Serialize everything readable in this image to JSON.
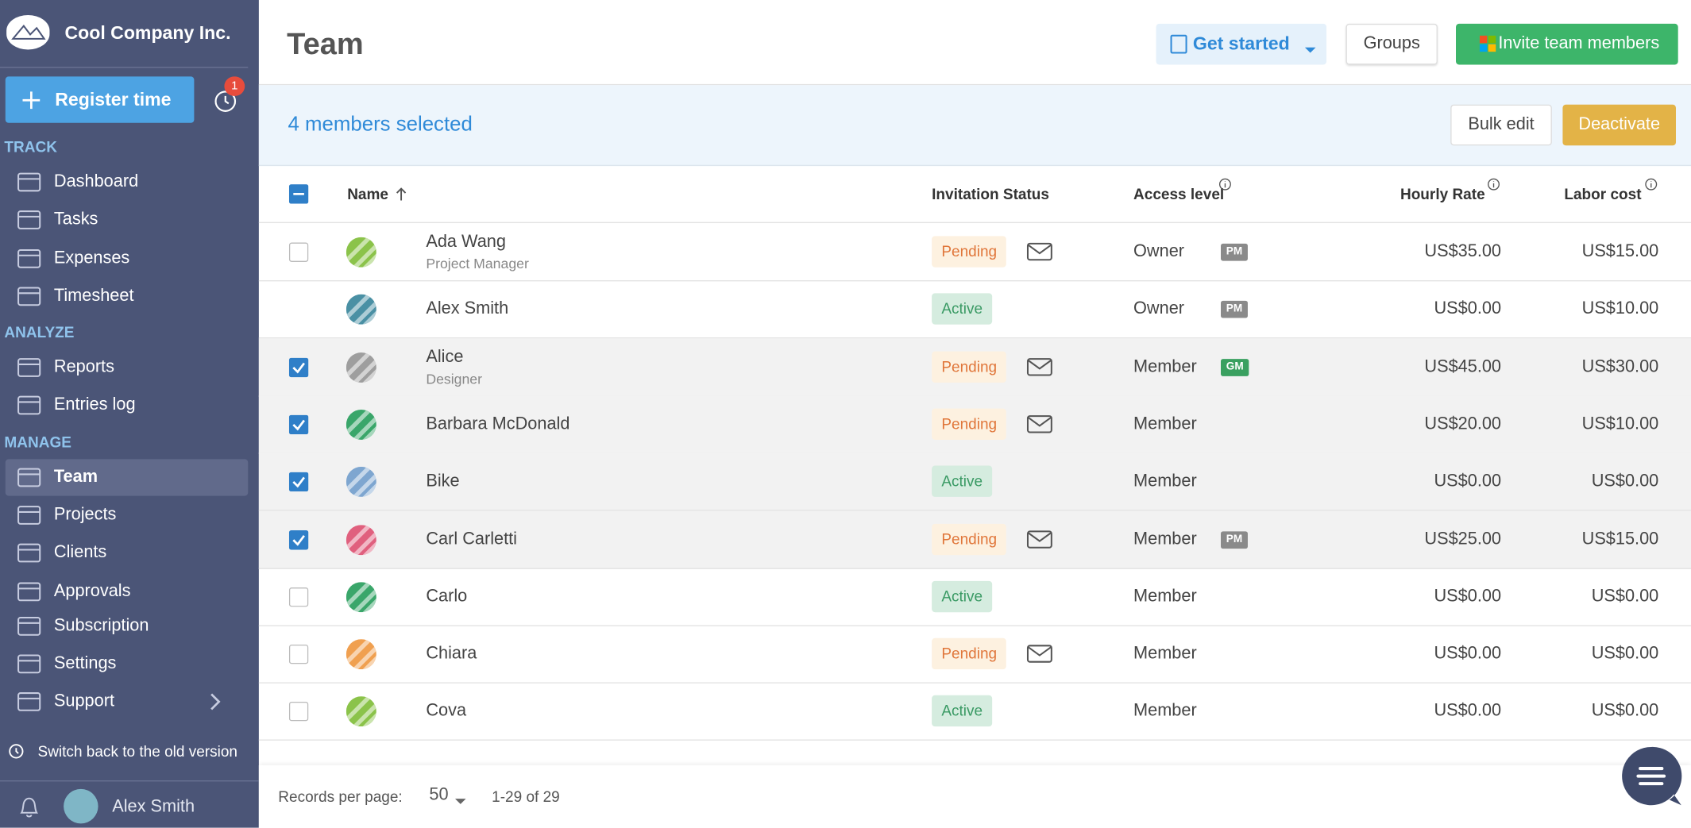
{
  "sidebar": {
    "company": "Cool Company Inc.",
    "register_button": "Register time",
    "notification_count": 1,
    "sections": [
      {
        "title": "TRACK",
        "items": [
          {
            "label": "Dashboard"
          },
          {
            "label": "Tasks"
          },
          {
            "label": "Expenses"
          },
          {
            "label": "Timesheet"
          }
        ]
      },
      {
        "title": "ANALYZE",
        "items": [
          {
            "label": "Reports"
          },
          {
            "label": "Entries log"
          }
        ]
      },
      {
        "title": "MANAGE",
        "items": [
          {
            "label": "Team",
            "active": true
          },
          {
            "label": "Projects"
          },
          {
            "label": "Clients"
          },
          {
            "label": "Approvals"
          },
          {
            "label": "Subscription"
          },
          {
            "label": "Settings"
          },
          {
            "label": "Support"
          }
        ]
      }
    ],
    "switch_back": "Switch back to the old version",
    "user": "Alex Smith"
  },
  "header": {
    "title": "Team",
    "buttons": [
      "Get started",
      "Groups",
      "Invite team members"
    ]
  },
  "selection": {
    "text": "4 members selected",
    "buttons": [
      "Bulk edit",
      "Deactivate"
    ]
  },
  "table": {
    "columns": [
      "Name",
      "Invitation Status",
      "Access level",
      "Hourly Rate",
      "Labor cost"
    ],
    "rows": [
      {
        "name": "Ada Wang",
        "subtitle": "Project Manager",
        "status": "Pending",
        "access": "Owner",
        "badge": "PM",
        "hourly": "US$35.00",
        "labor": "US$15.00",
        "selected": false,
        "avatar": "#8bc34a"
      },
      {
        "name": "Alex Smith",
        "status": "Active",
        "access": "Owner",
        "badge": "PM",
        "hourly": "US$0.00",
        "labor": "US$10.00",
        "selectable": false,
        "avatar": "#4a90a4"
      },
      {
        "name": "Alice",
        "subtitle": "Designer",
        "status": "Pending",
        "access": "Member",
        "badge": "GM",
        "hourly": "US$45.00",
        "labor": "US$30.00",
        "selected": true,
        "avatar": "#9e9e9e"
      },
      {
        "name": "Barbara McDonald",
        "status": "Pending",
        "access": "Member",
        "hourly": "US$20.00",
        "labor": "US$10.00",
        "selected": true,
        "avatar": "#3aa66a"
      },
      {
        "name": "Bike",
        "status": "Active",
        "access": "Member",
        "hourly": "US$0.00",
        "labor": "US$0.00",
        "selected": true,
        "avatar": "#7ea6d0"
      },
      {
        "name": "Carl Carletti",
        "status": "Pending",
        "access": "Member",
        "badge": "PM",
        "hourly": "US$25.00",
        "labor": "US$15.00",
        "selected": true,
        "avatar": "#e0607e"
      },
      {
        "name": "Carlo",
        "status": "Active",
        "access": "Member",
        "hourly": "US$0.00",
        "labor": "US$0.00",
        "selected": false,
        "avatar": "#3aa66a"
      },
      {
        "name": "Chiara",
        "status": "Pending",
        "access": "Member",
        "hourly": "US$0.00",
        "labor": "US$0.00",
        "selected": false,
        "avatar": "#f0a050"
      },
      {
        "name": "Cova",
        "status": "Active",
        "access": "Member",
        "hourly": "US$0.00",
        "labor": "US$0.00",
        "selected": false,
        "avatar": "#8bc34a"
      }
    ]
  },
  "footer": {
    "records_label": "Records per page:",
    "per_page": 50,
    "range": "1-29 of 29"
  }
}
